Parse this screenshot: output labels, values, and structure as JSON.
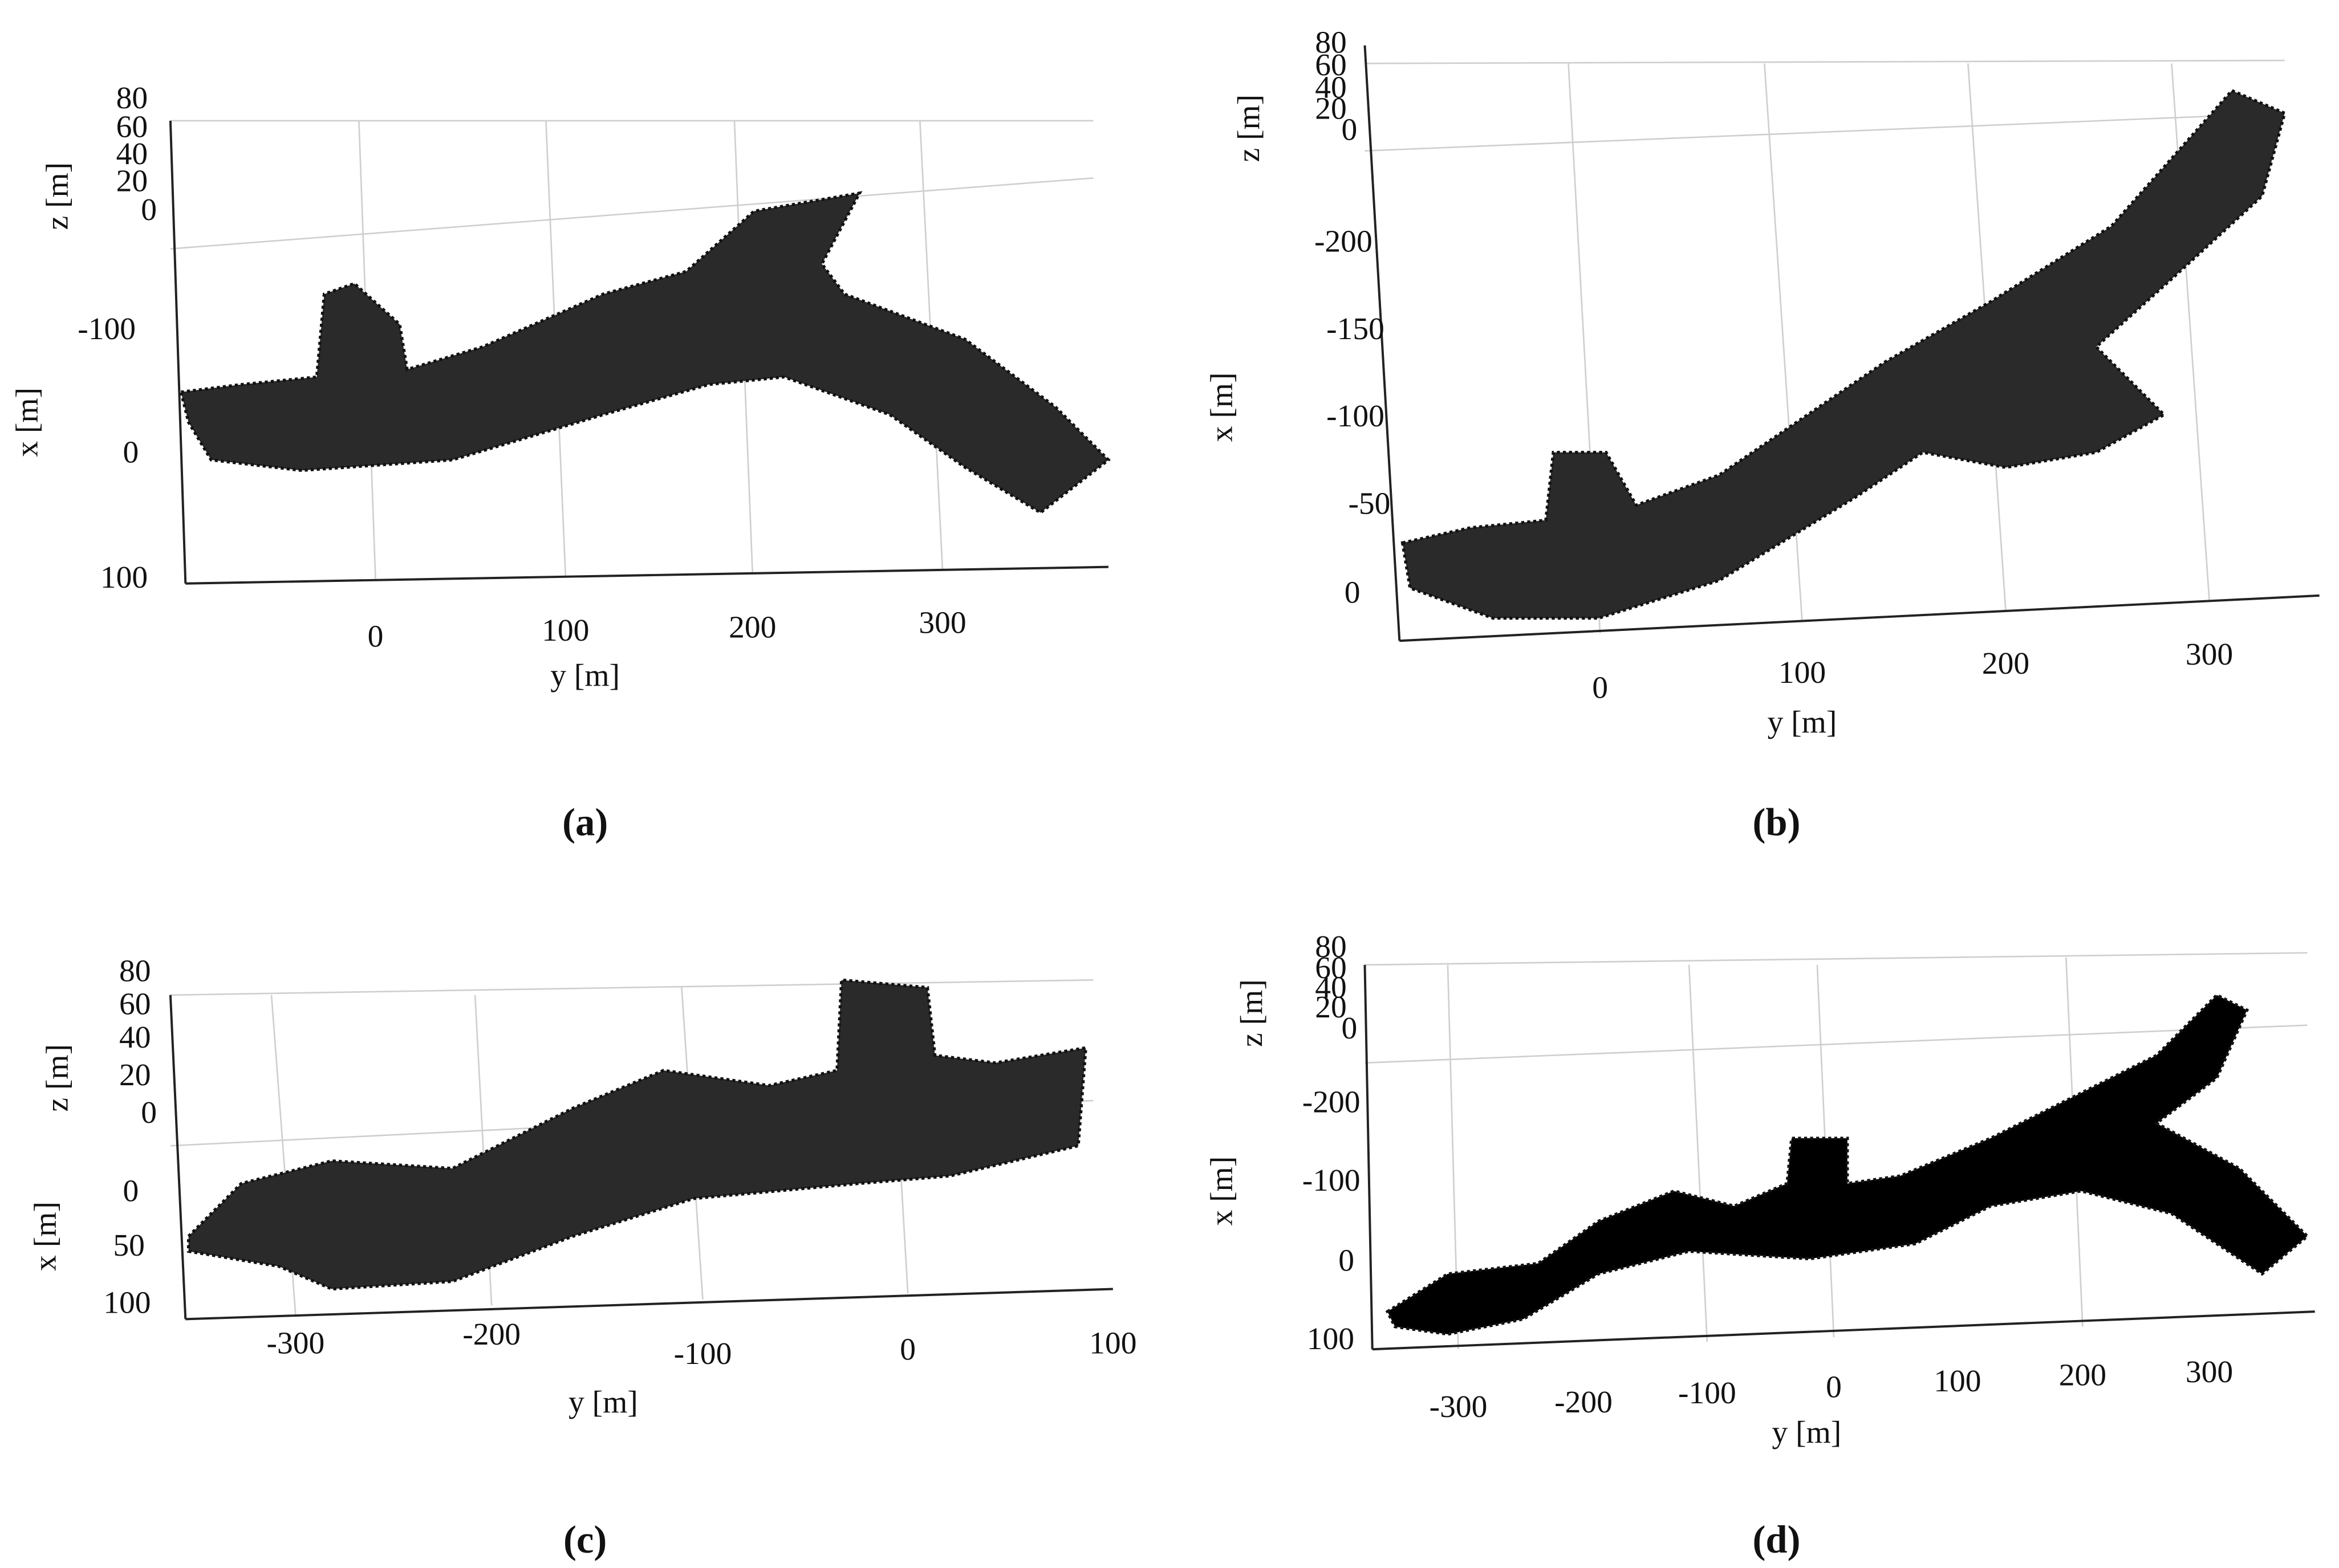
{
  "panels": [
    {
      "label": "(a)",
      "z_label": "z [m]",
      "z_ticks": [
        80,
        60,
        40,
        20,
        0
      ],
      "x_label": "x [m]",
      "x_ticks": [
        -100,
        0,
        100
      ],
      "y_label": "y [m]",
      "y_ticks": [
        0,
        100,
        200,
        300
      ]
    },
    {
      "label": "(b)",
      "z_label": "z [m]",
      "z_ticks": [
        80,
        60,
        40,
        20,
        0
      ],
      "x_label": "x [m]",
      "x_ticks": [
        -200,
        -150,
        -100,
        -50,
        0
      ],
      "y_label": "y [m]",
      "y_ticks": [
        0,
        100,
        200,
        300
      ]
    },
    {
      "label": "(c)",
      "z_label": "z [m]",
      "z_ticks": [
        80,
        60,
        40,
        20,
        0
      ],
      "x_label": "x [m]",
      "x_ticks": [
        0,
        50,
        100
      ],
      "y_label": "y [m]",
      "y_ticks": [
        -300,
        -200,
        -100,
        0,
        100
      ]
    },
    {
      "label": "(d)",
      "z_label": "z [m]",
      "z_ticks": [
        80,
        60,
        40,
        20,
        0
      ],
      "x_label": "x [m]",
      "x_ticks": [
        -200,
        -100,
        0,
        100
      ],
      "y_label": "y [m]",
      "y_ticks": [
        -300,
        -200,
        -100,
        0,
        100,
        200,
        300
      ]
    }
  ]
}
